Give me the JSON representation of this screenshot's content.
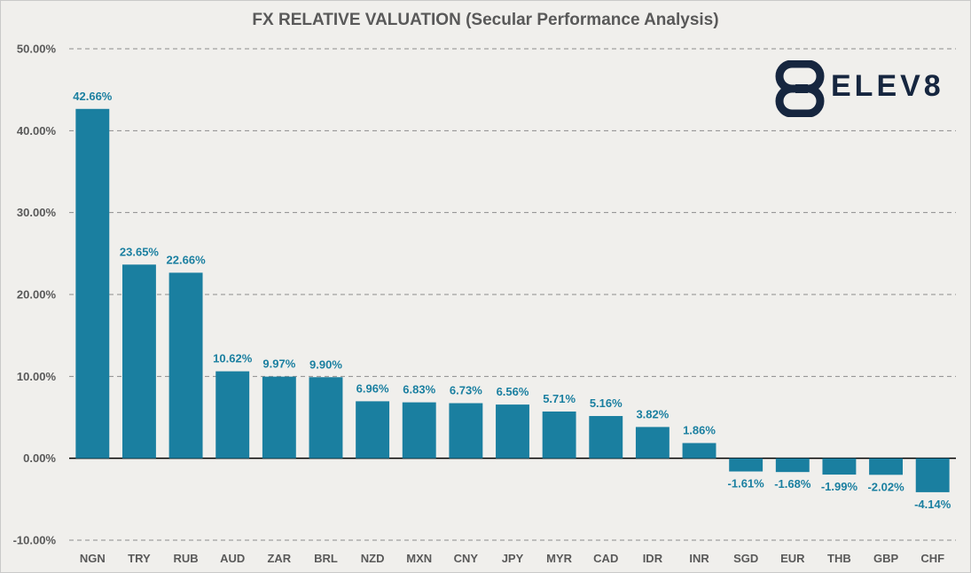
{
  "chart_data": {
    "type": "bar",
    "title": "FX RELATIVE VALUATION (Secular Performance Analysis)",
    "xlabel": "",
    "ylabel": "",
    "categories": [
      "NGN",
      "TRY",
      "RUB",
      "AUD",
      "ZAR",
      "BRL",
      "NZD",
      "MXN",
      "CNY",
      "JPY",
      "MYR",
      "CAD",
      "IDR",
      "INR",
      "SGD",
      "EUR",
      "THB",
      "GBP",
      "CHF"
    ],
    "values": [
      42.66,
      23.65,
      22.66,
      10.62,
      9.97,
      9.9,
      6.96,
      6.83,
      6.73,
      6.56,
      5.71,
      5.16,
      3.82,
      1.86,
      -1.61,
      -1.68,
      -1.99,
      -2.02,
      -4.14
    ],
    "data_labels": [
      "42.66%",
      "23.65%",
      "22.66%",
      "10.62%",
      "9.97%",
      "9.90%",
      "6.96%",
      "6.83%",
      "6.73%",
      "6.56%",
      "5.71%",
      "5.16%",
      "3.82%",
      "1.86%",
      "-1.61%",
      "-1.68%",
      "-1.99%",
      "-2.02%",
      "-4.14%"
    ],
    "ylim": [
      -10,
      50
    ],
    "yticks": [
      50,
      40,
      30,
      20,
      10,
      0,
      -10
    ],
    "ytick_labels": [
      "50.00%",
      "40.00%",
      "30.00%",
      "20.00%",
      "10.00%",
      "0.00%",
      "-10.00%"
    ],
    "grid": true,
    "bar_color": "#1a7fa0",
    "label_color": "#1a7fa0"
  },
  "logo": {
    "text": "ELEV8",
    "color": "#16263f"
  }
}
